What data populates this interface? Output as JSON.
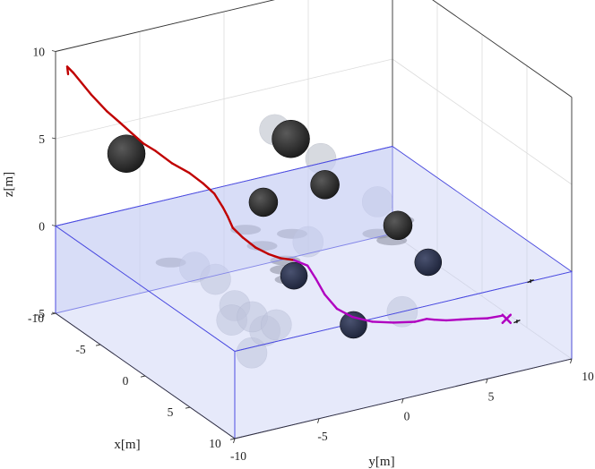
{
  "chart_data": {
    "type": "scatter",
    "projection": "3d",
    "title": "",
    "xlabel": "x[m]",
    "ylabel": "y[m]",
    "zlabel": "z[m]",
    "xlim": [
      -10,
      10
    ],
    "ylim": [
      -10,
      10
    ],
    "zlim": [
      -5,
      10
    ],
    "x_ticks": [
      "-10",
      "-5",
      "0",
      "5",
      "10"
    ],
    "y_ticks": [
      "-10",
      "-5",
      "0",
      "5",
      "10"
    ],
    "z_ticks": [
      "-5",
      "0",
      "5",
      "10"
    ],
    "grid": true,
    "box": true,
    "water_surface_z": 0,
    "colors": {
      "background": "#ffffff",
      "box_edge": "#333333",
      "grid": "#dcdcdc",
      "water_fill": "#c8cff5",
      "water_edge": "#4a4ae0",
      "path_above_water": "#c00000",
      "path_below_water": "#b000c0",
      "goal_marker": "#b000c0",
      "obstacle_solid": "#1a1a1a",
      "obstacle_submerged": "#1c2238",
      "obstacle_ghost": "#b8bcc8",
      "shadow": "#555555"
    },
    "series": [
      {
        "kind": "trajectory",
        "points": [
          [
            -8.6,
            -10.0,
            9.2
          ],
          [
            -8.7,
            -10.0,
            9.6
          ],
          [
            -8.2,
            -9.9,
            9.4
          ],
          [
            -6.8,
            -9.6,
            8.6
          ],
          [
            -5.6,
            -9.3,
            8.0
          ],
          [
            -4.7,
            -9.0,
            7.6
          ],
          [
            -4.0,
            -8.7,
            7.2
          ],
          [
            -3.2,
            -8.4,
            6.8
          ],
          [
            -2.6,
            -8.0,
            6.5
          ],
          [
            -1.7,
            -7.5,
            6.0
          ],
          [
            -0.9,
            -6.9,
            5.6
          ],
          [
            -0.3,
            -6.4,
            5.1
          ],
          [
            0.2,
            -6.0,
            4.6
          ],
          [
            0.4,
            -5.6,
            3.8
          ],
          [
            0.2,
            -5.2,
            3.1
          ],
          [
            0.0,
            -4.8,
            2.3
          ],
          [
            0.0,
            -4.2,
            1.6
          ],
          [
            0.3,
            -3.6,
            1.0
          ],
          [
            0.6,
            -3.0,
            0.6
          ],
          [
            0.8,
            -2.4,
            0.3
          ],
          [
            1.0,
            -1.7,
            0.1
          ],
          [
            1.2,
            -1.0,
            -0.3
          ],
          [
            1.4,
            -0.6,
            -1.1
          ],
          [
            1.8,
            -0.3,
            -1.9
          ],
          [
            2.6,
            0.0,
            -2.5
          ],
          [
            3.4,
            0.5,
            -2.8
          ],
          [
            4.1,
            1.3,
            -3.0
          ],
          [
            4.6,
            2.3,
            -3.1
          ],
          [
            4.9,
            3.4,
            -3.2
          ],
          [
            5.1,
            4.0,
            -3.1
          ],
          [
            5.2,
            4.4,
            -3.2
          ],
          [
            5.4,
            5.0,
            -3.3
          ],
          [
            5.5,
            5.8,
            -3.4
          ],
          [
            5.6,
            6.6,
            -3.5
          ],
          [
            5.7,
            7.3,
            -3.6
          ],
          [
            5.8,
            8.1,
            -3.6
          ]
        ]
      },
      {
        "kind": "goal",
        "marker": "x",
        "point": [
          6.3,
          8.1,
          -3.6
        ]
      },
      {
        "kind": "solid_obstacles",
        "centers": [
          [
            -8.3,
            -6.7,
            4.0
          ],
          [
            -4.8,
            1.2,
            4.3
          ],
          [
            -2.6,
            -1.6,
            2.1
          ],
          [
            -4.0,
            2.8,
            1.6
          ],
          [
            0.0,
            5.0,
            0.2
          ],
          [
            1.0,
            -1.7,
            -0.8
          ],
          [
            1.5,
            6.0,
            -1.6
          ],
          [
            5.2,
            -0.4,
            -2.4
          ]
        ]
      },
      {
        "kind": "translucent_obstacles",
        "centers": [
          [
            -4.9,
            0.3,
            5.0
          ],
          [
            -3.9,
            2.5,
            3.2
          ],
          [
            -2.0,
            -6.0,
            -0.4
          ],
          [
            -0.8,
            -5.4,
            -0.8
          ],
          [
            -1.0,
            0.2,
            0.0
          ],
          [
            0.6,
            -5.0,
            -1.9
          ],
          [
            1.4,
            -5.6,
            -2.3
          ],
          [
            4.0,
            -5.8,
            -3.2
          ],
          [
            3.4,
            -4.7,
            -2.4
          ],
          [
            1.8,
            -4.6,
            -2.2
          ],
          [
            2.6,
            -3.6,
            -2.6
          ],
          [
            5.0,
            2.6,
            -2.4
          ],
          [
            -3.4,
            5.6,
            0.2
          ]
        ]
      },
      {
        "kind": "shadows_on_surface",
        "centers": [
          [
            -2.4,
            -7.2,
            0
          ],
          [
            -4.2,
            -1.8,
            0
          ],
          [
            -2.4,
            0.0,
            0
          ],
          [
            -1.8,
            -2.1,
            0
          ],
          [
            0.6,
            -2.0,
            0
          ],
          [
            1.7,
            -2.6,
            0
          ],
          [
            3.0,
            -3.0,
            0
          ],
          [
            -1.0,
            5.6,
            0
          ],
          [
            0.0,
            3.8,
            0
          ],
          [
            1.2,
            4.0,
            0
          ]
        ]
      },
      {
        "kind": "small_markers",
        "points": [
          [
            6.9,
            8.4,
            -3.6
          ],
          [
            5.6,
            9.9,
            -2.1
          ]
        ]
      }
    ]
  }
}
